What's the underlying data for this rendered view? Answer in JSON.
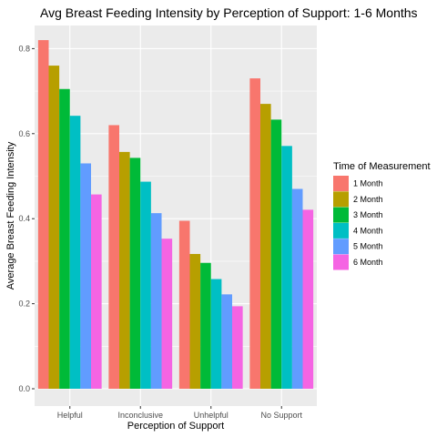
{
  "chart_data": {
    "type": "bar",
    "title": "Avg Breast Feeding Intensity by Perception of Support: 1-6 Months",
    "xlabel": "Perception of Support",
    "ylabel": "Average Breast Feeding Intensity",
    "categories": [
      "Helpful",
      "Inconclusive",
      "Unhelpful",
      "No Support"
    ],
    "ylim": [
      0,
      0.86
    ],
    "yticks": [
      0.0,
      0.2,
      0.4,
      0.6,
      0.8
    ],
    "ytick_labels": [
      "0.0",
      "0.2",
      "0.4",
      "0.6",
      "0.8"
    ],
    "grid": true,
    "legend_title": "Time of Measurement",
    "legend_position": "right",
    "series": [
      {
        "name": "1 Month",
        "color": "#F8766D",
        "values": [
          0.82,
          0.62,
          0.395,
          0.73
        ]
      },
      {
        "name": "2 Month",
        "color": "#B79F00",
        "values": [
          0.76,
          0.557,
          0.317,
          0.67
        ]
      },
      {
        "name": "3 Month",
        "color": "#00BA38",
        "values": [
          0.705,
          0.543,
          0.296,
          0.633
        ]
      },
      {
        "name": "4 Month",
        "color": "#00BFC4",
        "values": [
          0.642,
          0.487,
          0.258,
          0.571
        ]
      },
      {
        "name": "5 Month",
        "color": "#619CFF",
        "values": [
          0.53,
          0.413,
          0.222,
          0.47
        ]
      },
      {
        "name": "6 Month",
        "color": "#F564E3",
        "values": [
          0.457,
          0.353,
          0.194,
          0.421
        ]
      }
    ]
  }
}
